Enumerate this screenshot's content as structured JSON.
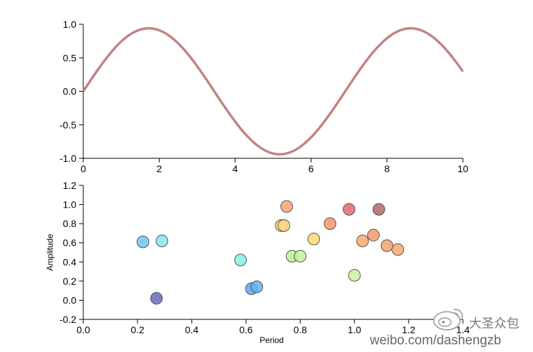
{
  "chart_data": [
    {
      "type": "line",
      "xlim": [
        0,
        10
      ],
      "ylim": [
        -1.0,
        1.0
      ],
      "xticks": [
        "0",
        "2",
        "4",
        "6",
        "8",
        "10"
      ],
      "yticks": [
        "1.0",
        "0.5",
        "0.0",
        "-0.5",
        "-1.0"
      ],
      "series": [
        {
          "color": "#c48282",
          "function": "sine",
          "amplitude": 0.94,
          "period": 6.9,
          "x": [
            0,
            0.5,
            1.0,
            1.5,
            1.73,
            2.0,
            2.5,
            3.0,
            3.5,
            4.0,
            4.5,
            5.0,
            5.18,
            5.5,
            6.0,
            6.5,
            7.0,
            7.5,
            8.0,
            8.5,
            8.63,
            9.0,
            9.5,
            10.0
          ],
          "y": [
            0.0,
            0.42,
            0.75,
            0.93,
            0.94,
            0.93,
            0.75,
            0.42,
            0.0,
            -0.42,
            -0.75,
            -0.93,
            -0.94,
            -0.93,
            -0.75,
            -0.42,
            0.0,
            0.42,
            0.75,
            0.93,
            0.94,
            0.91,
            0.66,
            0.26
          ]
        }
      ]
    },
    {
      "type": "scatter",
      "xlabel": "Period",
      "ylabel": "Amplitude",
      "xlim": [
        0.0,
        1.4
      ],
      "ylim": [
        -0.2,
        1.2
      ],
      "xticks": [
        "0.0",
        "0.2",
        "0.4",
        "0.6",
        "0.8",
        "1.0",
        "1.2",
        "1.4"
      ],
      "yticks": [
        "1.2",
        "1.0",
        "0.8",
        "0.6",
        "0.4",
        "0.2",
        "0.0",
        "-0.2"
      ],
      "points": [
        {
          "x": 0.22,
          "y": 0.61,
          "color": "#6ec6ef"
        },
        {
          "x": 0.29,
          "y": 0.62,
          "color": "#84e5ef"
        },
        {
          "x": 0.27,
          "y": 0.02,
          "color": "#6868b8"
        },
        {
          "x": 0.58,
          "y": 0.42,
          "color": "#88efe0"
        },
        {
          "x": 0.62,
          "y": 0.12,
          "color": "#5fa6ee"
        },
        {
          "x": 0.64,
          "y": 0.14,
          "color": "#5fb4ef"
        },
        {
          "x": 0.73,
          "y": 0.78,
          "color": "#ffdc55"
        },
        {
          "x": 0.74,
          "y": 0.78,
          "color": "#ffd48a"
        },
        {
          "x": 0.75,
          "y": 0.98,
          "color": "#f6a27c"
        },
        {
          "x": 0.77,
          "y": 0.46,
          "color": "#b8f092"
        },
        {
          "x": 0.8,
          "y": 0.46,
          "color": "#c4f29c"
        },
        {
          "x": 0.85,
          "y": 0.64,
          "color": "#ffd870"
        },
        {
          "x": 0.91,
          "y": 0.8,
          "color": "#f5966a"
        },
        {
          "x": 0.98,
          "y": 0.95,
          "color": "#e8686e"
        },
        {
          "x": 1.0,
          "y": 0.26,
          "color": "#c8f0a6"
        },
        {
          "x": 1.03,
          "y": 0.62,
          "color": "#f9a86a"
        },
        {
          "x": 1.07,
          "y": 0.68,
          "color": "#f59a6a"
        },
        {
          "x": 1.09,
          "y": 0.95,
          "color": "#b06868"
        },
        {
          "x": 1.12,
          "y": 0.57,
          "color": "#f7a06a"
        },
        {
          "x": 1.16,
          "y": 0.53,
          "color": "#f9a472"
        }
      ]
    }
  ],
  "watermark": {
    "cn": "大圣众包",
    "url": "weibo.com/dashengzb"
  }
}
